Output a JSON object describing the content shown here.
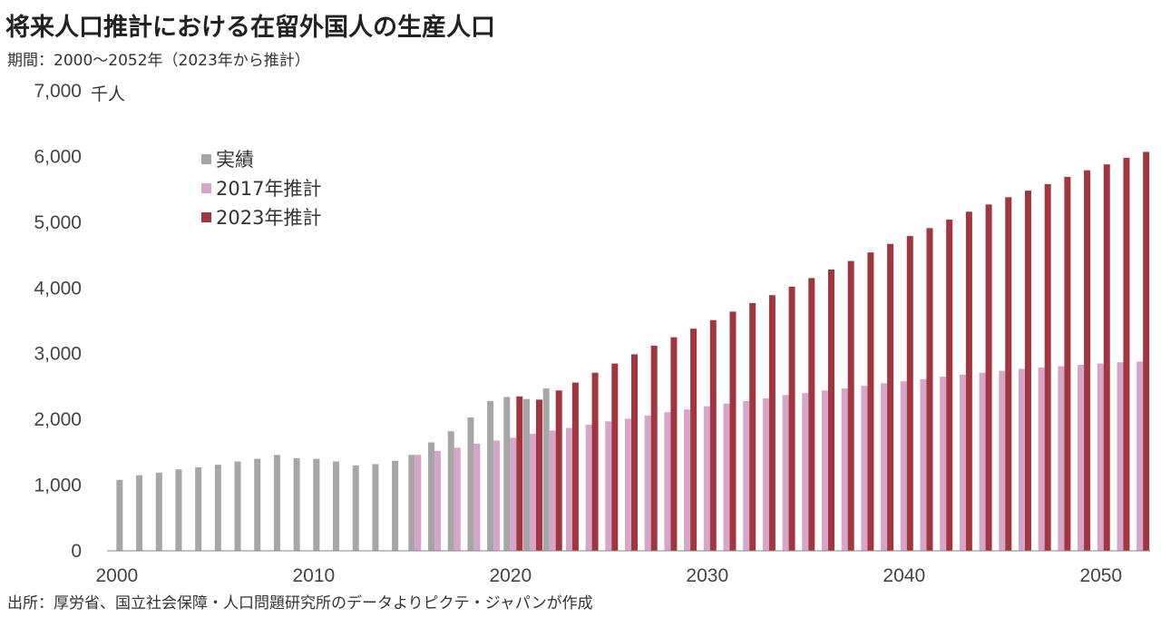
{
  "title": "将来人口推計における在留外国人の生産人口",
  "subtitle": "期間：2000～2052年（2023年から推計）",
  "source": "出所：厚労省、国立社会保障・人口問題研究所のデータよりピクテ・ジャパンが作成",
  "chart_data": {
    "type": "bar",
    "unit": "千人",
    "ylim": [
      0,
      7000
    ],
    "yticks": [
      0,
      1000,
      2000,
      3000,
      4000,
      5000,
      6000,
      7000
    ],
    "ytick_labels": [
      "0",
      "1,000",
      "2,000",
      "3,000",
      "4,000",
      "5,000",
      "6,000",
      "7,000"
    ],
    "xlim": [
      2000,
      2052
    ],
    "xticks": [
      2000,
      2010,
      2020,
      2030,
      2040,
      2050
    ],
    "xtick_labels": [
      "2000",
      "2010",
      "2020",
      "2030",
      "2040",
      "2050"
    ],
    "grid": false,
    "legend_position": "top-left",
    "series": [
      {
        "name": "実績",
        "color": "#a6a6a6",
        "x": [
          2000,
          2001,
          2002,
          2003,
          2004,
          2005,
          2006,
          2007,
          2008,
          2009,
          2010,
          2011,
          2012,
          2013,
          2014,
          2015,
          2016,
          2017,
          2018,
          2019,
          2020,
          2021,
          2022
        ],
        "values": [
          1080,
          1150,
          1190,
          1240,
          1270,
          1310,
          1360,
          1400,
          1460,
          1410,
          1400,
          1360,
          1300,
          1320,
          1370,
          1460,
          1650,
          1820,
          2030,
          2280,
          2340,
          2310,
          2470
        ]
      },
      {
        "name": "2017年推計",
        "color": "#d5a6c9",
        "x": [
          2015,
          2016,
          2017,
          2018,
          2019,
          2020,
          2021,
          2022,
          2023,
          2024,
          2025,
          2026,
          2027,
          2028,
          2029,
          2030,
          2031,
          2032,
          2033,
          2034,
          2035,
          2036,
          2037,
          2038,
          2039,
          2040,
          2041,
          2042,
          2043,
          2044,
          2045,
          2046,
          2047,
          2048,
          2049,
          2050,
          2051,
          2052
        ],
        "values": [
          1460,
          1520,
          1570,
          1630,
          1680,
          1720,
          1780,
          1830,
          1870,
          1920,
          1970,
          2010,
          2060,
          2110,
          2150,
          2200,
          2240,
          2280,
          2320,
          2370,
          2400,
          2440,
          2470,
          2510,
          2550,
          2580,
          2610,
          2650,
          2680,
          2710,
          2740,
          2770,
          2790,
          2810,
          2830,
          2850,
          2870,
          2880
        ]
      },
      {
        "name": "2023年推計",
        "color": "#a3353e",
        "x": [
          2020,
          2021,
          2022,
          2023,
          2024,
          2025,
          2026,
          2027,
          2028,
          2029,
          2030,
          2031,
          2032,
          2033,
          2034,
          2035,
          2036,
          2037,
          2038,
          2039,
          2040,
          2041,
          2042,
          2043,
          2044,
          2045,
          2046,
          2047,
          2048,
          2049,
          2050,
          2051,
          2052
        ],
        "values": [
          2350,
          2300,
          2440,
          2560,
          2710,
          2850,
          2990,
          3120,
          3250,
          3380,
          3510,
          3640,
          3770,
          3890,
          4020,
          4150,
          4280,
          4410,
          4540,
          4670,
          4790,
          4910,
          5040,
          5160,
          5270,
          5380,
          5480,
          5580,
          5690,
          5790,
          5880,
          5980,
          6070
        ]
      }
    ]
  }
}
